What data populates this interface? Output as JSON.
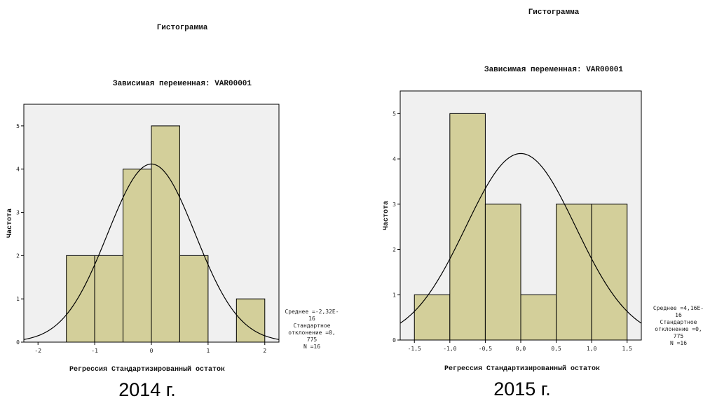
{
  "chart_data": [
    {
      "type": "bar",
      "title": "Гистограмма",
      "subtitle": "Зависимая переменная: VAR00001",
      "xlabel": "Регрессия Стандартизированный остаток",
      "ylabel": "Частота",
      "xlim": [
        -2.25,
        2.25
      ],
      "ylim": [
        0,
        5.5
      ],
      "xticks": [
        -2,
        -1,
        0,
        1,
        2
      ],
      "xtick_labels": [
        "-2",
        "-1",
        "0",
        "1",
        "2"
      ],
      "yticks": [
        0,
        1,
        2,
        3,
        4,
        5
      ],
      "ytick_labels": [
        "0",
        "1",
        "2",
        "3",
        "4",
        "5"
      ],
      "bins": [
        {
          "x0": -1.5,
          "x1": -1.0,
          "value": 2
        },
        {
          "x0": -1.0,
          "x1": -0.5,
          "value": 2
        },
        {
          "x0": -0.5,
          "x1": 0.0,
          "value": 4
        },
        {
          "x0": 0.0,
          "x1": 0.5,
          "value": 5
        },
        {
          "x0": 0.5,
          "x1": 1.0,
          "value": 2
        },
        {
          "x0": 1.5,
          "x1": 2.0,
          "value": 1
        }
      ],
      "normal_curve": {
        "mean": 0,
        "sd": 0.775,
        "n": 16,
        "bin_width": 0.5
      },
      "stats_lines": [
        "Среднее =-2,32E-",
        "16",
        "Стандартное",
        "отклонение =0,",
        "775",
        "N =16"
      ],
      "caption": "2014 г.",
      "grid": false,
      "colors": {
        "bar": "#d3cf9a",
        "plot_bg": "#f0f0f0"
      }
    },
    {
      "type": "bar",
      "title": "Гистограмма",
      "subtitle": "Зависимая переменная: VAR00001",
      "xlabel": "Регрессия Стандартизированный остаток",
      "ylabel": "Частота",
      "xlim": [
        -1.7,
        1.7
      ],
      "ylim": [
        0,
        5.5
      ],
      "xticks": [
        -1.5,
        -1.0,
        -0.5,
        0.0,
        0.5,
        1.0,
        1.5
      ],
      "xtick_labels": [
        "-1,5",
        "-1,0",
        "-0,5",
        "0,0",
        "0,5",
        "1,0",
        "1,5"
      ],
      "yticks": [
        0,
        1,
        2,
        3,
        4,
        5
      ],
      "ytick_labels": [
        "0",
        "1",
        "2",
        "3",
        "4",
        "5"
      ],
      "bins": [
        {
          "x0": -1.5,
          "x1": -1.0,
          "value": 1
        },
        {
          "x0": -1.0,
          "x1": -0.5,
          "value": 5
        },
        {
          "x0": -0.5,
          "x1": 0.0,
          "value": 3
        },
        {
          "x0": 0.0,
          "x1": 0.5,
          "value": 1
        },
        {
          "x0": 0.5,
          "x1": 1.0,
          "value": 3
        },
        {
          "x0": 1.0,
          "x1": 1.5,
          "value": 3
        }
      ],
      "normal_curve": {
        "mean": 0,
        "sd": 0.775,
        "n": 16,
        "bin_width": 0.5
      },
      "stats_lines": [
        "Среднее =4,16E-",
        "16",
        "Стандартное",
        "отклонение =0,",
        "775",
        "N =16"
      ],
      "caption": "2015 г.",
      "grid": false,
      "colors": {
        "bar": "#d3cf9a",
        "plot_bg": "#f0f0f0"
      }
    }
  ]
}
